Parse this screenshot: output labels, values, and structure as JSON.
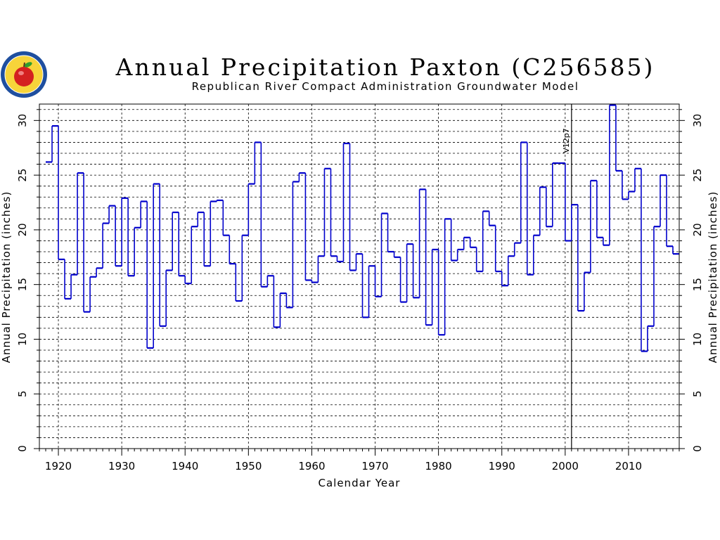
{
  "chart_data": {
    "type": "line",
    "style": "step",
    "title": "Annual Precipitation Paxton (C256585)",
    "subtitle": "Republican River Compact Administration Groundwater Model",
    "xlabel": "Calendar Year",
    "ylabel": "Annual Precipitation (inches)",
    "ylabel_right": "Annual Precipitation (inches)",
    "xlim": [
      1917,
      2018
    ],
    "ylim": [
      0,
      31.5
    ],
    "x_ticks": [
      1920,
      1930,
      1940,
      1950,
      1960,
      1970,
      1980,
      1990,
      2000,
      2010
    ],
    "y_ticks": [
      0,
      5,
      10,
      15,
      20,
      25,
      30
    ],
    "grid": true,
    "vertical_marker": {
      "x": 2001,
      "label": "V12p7"
    },
    "colors": {
      "line": "#0000cc",
      "grid": "#000000",
      "logo_outer": "#1f4f9f",
      "logo_inner": "#f7d43a",
      "apple": "#d42020"
    },
    "series": [
      {
        "years": [
          1918,
          1919,
          1920,
          1921,
          1922,
          1923,
          1924,
          1925,
          1926,
          1927,
          1928,
          1929,
          1930,
          1931,
          1932,
          1933,
          1934,
          1935,
          1936,
          1937,
          1938,
          1939,
          1940,
          1941,
          1942,
          1943,
          1944,
          1945,
          1946,
          1947,
          1948,
          1949,
          1950,
          1951,
          1952,
          1953,
          1954,
          1955,
          1956,
          1957,
          1958,
          1959,
          1960,
          1961,
          1962,
          1963,
          1964,
          1965,
          1966,
          1967,
          1968,
          1969,
          1970,
          1971,
          1972,
          1973,
          1974,
          1975,
          1976,
          1977,
          1978,
          1979,
          1980,
          1981,
          1982,
          1983,
          1984,
          1985,
          1986,
          1987,
          1988,
          1989,
          1990,
          1991,
          1992,
          1993,
          1994,
          1995,
          1996,
          1997,
          1998,
          1999,
          2000,
          2001,
          2002,
          2003,
          2004,
          2005,
          2006,
          2007,
          2008,
          2009,
          2010,
          2011,
          2012,
          2013,
          2014,
          2015,
          2016,
          2017
        ],
        "values": [
          26.2,
          29.5,
          17.3,
          13.7,
          15.9,
          25.2,
          12.5,
          15.7,
          16.5,
          20.6,
          22.2,
          16.7,
          22.9,
          15.8,
          20.2,
          22.6,
          9.2,
          24.2,
          11.2,
          16.3,
          21.6,
          15.8,
          15.1,
          20.3,
          21.6,
          16.7,
          22.6,
          22.7,
          19.5,
          16.9,
          13.5,
          19.5,
          24.2,
          28.0,
          14.8,
          15.8,
          11.1,
          14.2,
          12.9,
          24.4,
          25.2,
          15.4,
          15.2,
          17.6,
          25.6,
          17.6,
          17.1,
          27.9,
          16.3,
          17.8,
          12.0,
          16.7,
          13.9,
          21.5,
          18.0,
          17.5,
          13.4,
          18.7,
          13.8,
          23.7,
          11.3,
          18.2,
          10.4,
          21.0,
          17.2,
          18.2,
          19.3,
          18.4,
          16.2,
          21.7,
          20.4,
          16.2,
          14.9,
          17.6,
          18.8,
          28.0,
          15.9,
          19.5,
          23.9,
          20.3,
          26.1,
          26.1,
          19.0,
          22.3,
          12.6,
          16.1,
          24.5,
          19.3,
          18.6,
          31.4,
          25.4,
          22.8,
          23.5,
          25.6,
          8.9,
          11.2,
          20.3,
          25.0,
          18.5,
          17.8
        ]
      }
    ]
  }
}
